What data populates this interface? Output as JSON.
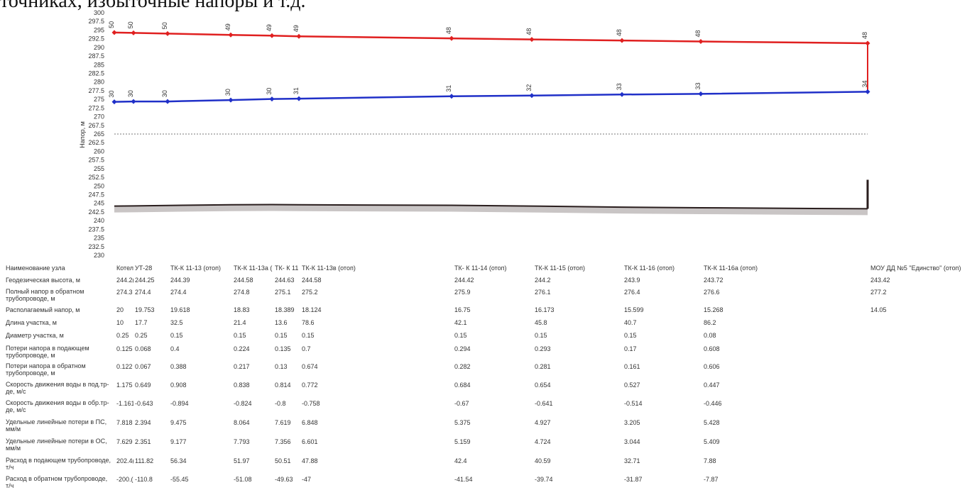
{
  "heading": "точниках, избыточные напоры и т.д.",
  "chart_data": {
    "type": "line",
    "ylabel": "Напор, м",
    "ylim": [
      230,
      300
    ],
    "yticks": [
      "230",
      "232.5",
      "235",
      "237.5",
      "240",
      "242.5",
      "245",
      "247.5",
      "250",
      "252.5",
      "255",
      "257.5",
      "260",
      "262.5",
      "265",
      "267.5",
      "270",
      "272.5",
      "275",
      "277.5",
      "280",
      "282.5",
      "285",
      "287.5",
      "290",
      "292.5",
      "295",
      "297.5",
      "300"
    ],
    "reference_line": 265,
    "series": [
      {
        "color": "#e02020",
        "values": [
          294.3,
          294.2,
          294.0,
          293.6,
          293.4,
          293.2,
          292.6,
          292.3,
          292.0,
          291.7,
          291.2
        ],
        "point_labels": [
          "50",
          "50",
          "50",
          "49",
          "49",
          "49",
          "48",
          "48",
          "48",
          "48",
          "48"
        ]
      },
      {
        "color": "#2030c8",
        "values": [
          274.3,
          274.4,
          274.4,
          274.8,
          275.1,
          275.2,
          275.9,
          276.1,
          276.4,
          276.6,
          277.2
        ],
        "point_labels": [
          "30",
          "30",
          "30",
          "30",
          "30",
          "31",
          "31",
          "32",
          "33",
          "33",
          "34"
        ]
      }
    ],
    "ground": [
      244.2,
      244.25,
      244.39,
      244.58,
      244.63,
      244.58,
      244.42,
      244.2,
      243.9,
      243.72,
      243.42
    ],
    "endpoint_return_top": 251.8
  },
  "table": {
    "row_labels": [
      "Наименование узла",
      "Геодезическая высота, м",
      "Полный напор в обратном трубопроводе, м",
      "Располагаемый напор, м",
      "Длина участка, м",
      "Диаметр участка, м",
      "Потери напора в подающем трубопроводе, м",
      "Потери напора в обратном трубопроводе, м",
      "Скорость движения воды в под.тр-де, м/с",
      "Скорость движения воды в обр.тр-де, м/с",
      "Удельные линейные потери в ПС, мм/м",
      "Удельные линейные потери в ОС, мм/м",
      "Расход в подающем трубопроводе, т/ч",
      "Расход в обратном трубопроводе, т/ч"
    ],
    "columns": [
      [
        "Котел",
        "244.2(",
        "274.3",
        "20",
        "10",
        "0.25",
        "0.125",
        "0.122",
        "1.175",
        "-1.161",
        "7.818",
        "7.629",
        "202.4(",
        "-200.("
      ],
      [
        "УТ-28",
        "244.25",
        "274.4",
        "19.753",
        "17.7",
        "0.25",
        "0.068",
        "0.067",
        "0.649",
        "-0.643",
        "2.394",
        "2.351",
        "111.82",
        "-110.8"
      ],
      [
        "ТК-К 11-13 (отоп)",
        "244.39",
        "274.4",
        "19.618",
        "32.5",
        "0.15",
        "0.4",
        "0.388",
        "0.908",
        "-0.894",
        "9.475",
        "9.177",
        "56.34",
        "-55.45"
      ],
      [
        "ТК-К 11-13а (",
        "244.58",
        "274.8",
        "18.83",
        "21.4",
        "0.15",
        "0.224",
        "0.217",
        "0.838",
        "-0.824",
        "8.064",
        "7.793",
        "51.97",
        "-51.08"
      ],
      [
        "ТК- К 11",
        "244.63",
        "275.1",
        "18.389",
        "13.6",
        "0.15",
        "0.135",
        "0.13",
        "0.814",
        "-0.8",
        "7.619",
        "7.356",
        "50.51",
        "-49.63"
      ],
      [
        "ТК-К 11-13в (отоп)",
        "244.58",
        "275.2",
        "18.124",
        "78.6",
        "0.15",
        "0.7",
        "0.674",
        "0.772",
        "-0.758",
        "6.848",
        "6.601",
        "47.88",
        "-47"
      ],
      [
        "ТК- К 11-14 (отоп)",
        "244.42",
        "275.9",
        "16.75",
        "42.1",
        "0.15",
        "0.294",
        "0.282",
        "0.684",
        "-0.67",
        "5.375",
        "5.159",
        "42.4",
        "-41.54"
      ],
      [
        "ТК-К 11-15 (отоп)",
        "244.2",
        "276.1",
        "16.173",
        "45.8",
        "0.15",
        "0.293",
        "0.281",
        "0.654",
        "-0.641",
        "4.927",
        "4.724",
        "40.59",
        "-39.74"
      ],
      [
        "ТК-К 11-16 (отоп)",
        "243.9",
        "276.4",
        "15.599",
        "40.7",
        "0.15",
        "0.17",
        "0.161",
        "0.527",
        "-0.514",
        "3.205",
        "3.044",
        "32.71",
        "-31.87"
      ],
      [
        "ТК-К 11-16а (отоп)",
        "243.72",
        "276.6",
        "15.268",
        "86.2",
        "0.08",
        "0.608",
        "0.606",
        "0.447",
        "-0.446",
        "5.428",
        "5.409",
        "7.88",
        "-7.87"
      ],
      [
        "МОУ ДД №5 \"Единство\" (отоп)",
        "243.42",
        "277.2",
        "14.05",
        "",
        "",
        "",
        "",
        "",
        "",
        "",
        "",
        "",
        ""
      ]
    ]
  }
}
